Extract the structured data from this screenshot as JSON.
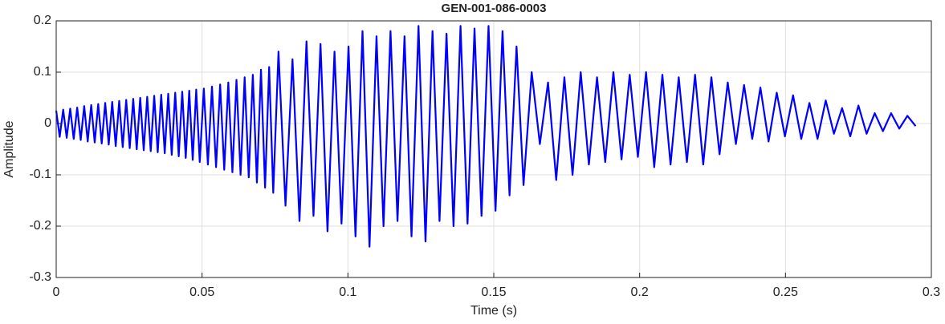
{
  "chart_data": {
    "type": "line",
    "title": "GEN-001-086-0003",
    "xlabel": "Time (s)",
    "ylabel": "Amplitude",
    "xlim": [
      0,
      0.3
    ],
    "ylim": [
      -0.3,
      0.2
    ],
    "xticks": [
      0,
      0.05,
      0.1,
      0.15,
      0.2,
      0.25,
      0.3
    ],
    "yticks": [
      -0.3,
      -0.2,
      -0.1,
      0,
      0.1,
      0.2
    ],
    "grid": true,
    "x": [
      0.0,
      0.0012,
      0.0024,
      0.0036,
      0.0048,
      0.006,
      0.0072,
      0.0084,
      0.0096,
      0.0108,
      0.012,
      0.0132,
      0.0144,
      0.0156,
      0.0168,
      0.018,
      0.0192,
      0.0204,
      0.0216,
      0.0228,
      0.024,
      0.0252,
      0.0264,
      0.0276,
      0.0288,
      0.03,
      0.0312,
      0.0324,
      0.0336,
      0.0348,
      0.036,
      0.0372,
      0.0384,
      0.0396,
      0.0408,
      0.042,
      0.0432,
      0.0444,
      0.0456,
      0.0468,
      0.048,
      0.0492,
      0.0506,
      0.052,
      0.0534,
      0.0548,
      0.0562,
      0.0576,
      0.059,
      0.0604,
      0.0618,
      0.0632,
      0.0646,
      0.066,
      0.0674,
      0.0688,
      0.0702,
      0.0716,
      0.073,
      0.0744,
      0.0762,
      0.0786,
      0.081,
      0.0834,
      0.0858,
      0.0882,
      0.0906,
      0.093,
      0.0954,
      0.0978,
      0.1002,
      0.1026,
      0.105,
      0.1074,
      0.1098,
      0.1122,
      0.1146,
      0.117,
      0.1194,
      0.1218,
      0.1242,
      0.1266,
      0.129,
      0.1314,
      0.1338,
      0.1362,
      0.1386,
      0.141,
      0.1434,
      0.1458,
      0.1482,
      0.1506,
      0.153,
      0.1554,
      0.1578,
      0.1602,
      0.163,
      0.1658,
      0.1686,
      0.1714,
      0.1742,
      0.177,
      0.1798,
      0.1826,
      0.1854,
      0.1882,
      0.191,
      0.1938,
      0.1966,
      0.1994,
      0.2022,
      0.205,
      0.2078,
      0.2106,
      0.2134,
      0.2162,
      0.219,
      0.2218,
      0.2246,
      0.2274,
      0.2302,
      0.233,
      0.2358,
      0.2386,
      0.2414,
      0.2442,
      0.247,
      0.2498,
      0.2526,
      0.2554,
      0.2582,
      0.261,
      0.2638,
      0.2666,
      0.2694,
      0.2722,
      0.275,
      0.2778,
      0.2806,
      0.2834,
      0.2862,
      0.289,
      0.2918,
      0.2946
    ],
    "series": [
      {
        "color": "#0000ff",
        "values": [
          0.025,
          -0.026,
          0.027,
          -0.028,
          0.029,
          -0.03,
          0.031,
          -0.032,
          0.034,
          -0.035,
          0.036,
          -0.037,
          0.038,
          -0.039,
          0.04,
          -0.041,
          0.042,
          -0.044,
          0.044,
          -0.046,
          0.046,
          -0.048,
          0.048,
          -0.05,
          0.05,
          -0.052,
          0.052,
          -0.054,
          0.054,
          -0.056,
          0.056,
          -0.058,
          0.058,
          -0.061,
          0.06,
          -0.064,
          0.062,
          -0.067,
          0.064,
          -0.071,
          0.066,
          -0.075,
          0.068,
          -0.08,
          0.072,
          -0.085,
          0.076,
          -0.09,
          0.08,
          -0.095,
          0.085,
          -0.1,
          0.09,
          -0.105,
          0.095,
          -0.115,
          0.105,
          -0.125,
          0.11,
          -0.135,
          0.14,
          -0.16,
          0.125,
          -0.19,
          0.16,
          -0.18,
          0.155,
          -0.21,
          0.14,
          -0.195,
          0.15,
          -0.22,
          0.18,
          -0.24,
          0.17,
          -0.2,
          0.18,
          -0.19,
          0.17,
          -0.22,
          0.19,
          -0.23,
          0.18,
          -0.19,
          0.175,
          -0.2,
          0.19,
          -0.195,
          0.185,
          -0.18,
          0.19,
          -0.17,
          0.18,
          -0.14,
          0.15,
          -0.12,
          0.1,
          -0.04,
          0.08,
          -0.11,
          0.09,
          -0.1,
          0.1,
          -0.08,
          0.09,
          -0.075,
          0.1,
          -0.07,
          0.095,
          -0.065,
          0.1,
          -0.085,
          0.095,
          -0.08,
          0.09,
          -0.075,
          0.095,
          -0.08,
          0.09,
          -0.06,
          0.08,
          -0.04,
          0.075,
          -0.03,
          0.07,
          -0.035,
          0.06,
          -0.025,
          0.055,
          -0.03,
          0.04,
          -0.03,
          0.045,
          -0.02,
          0.03,
          -0.025,
          0.035,
          -0.02,
          0.02,
          -0.015,
          0.02,
          -0.01,
          0.015,
          -0.005
        ]
      }
    ]
  }
}
